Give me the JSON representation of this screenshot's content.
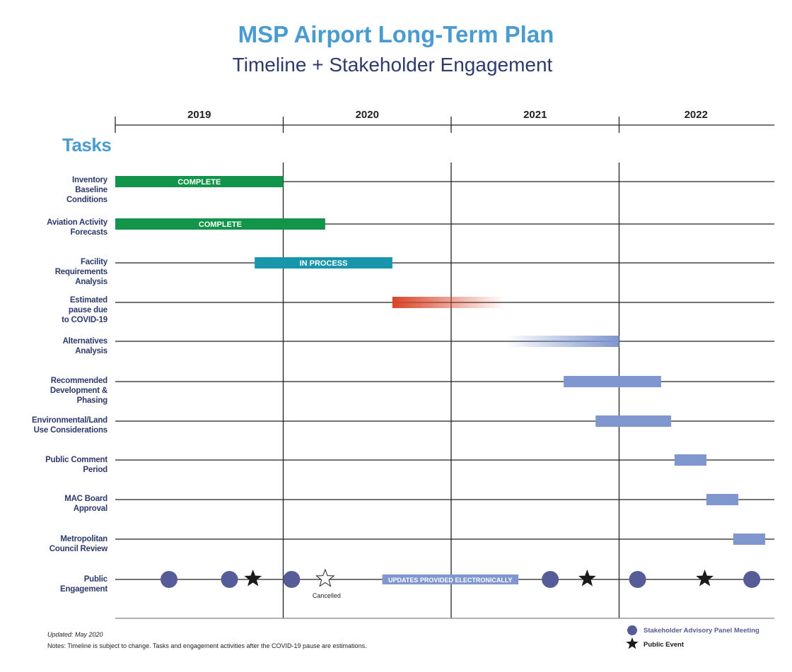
{
  "title": "MSP Airport Long-Term Plan",
  "subtitle": "Timeline + Stakeholder Engagement",
  "tasks_heading": "Tasks",
  "colors": {
    "title": "#4a9cd0",
    "label": "#2d3a6b",
    "complete": "#12944a",
    "in_process": "#1896ab",
    "covid": "#d9452a",
    "planned": "#7f96cf",
    "meeting": "#565c97",
    "event": "#1a1a1a"
  },
  "chart_data": {
    "type": "gantt",
    "x_axis": {
      "unit": "year",
      "range": [
        2019,
        2023
      ],
      "tick_labels": [
        "2019",
        "2020",
        "2021",
        "2022"
      ]
    },
    "tasks": [
      {
        "label": "Inventory\nBaseline\nConditions",
        "start": 2019.0,
        "end": 2020.0,
        "status": "COMPLETE",
        "style": "complete"
      },
      {
        "label": "Aviation Activity\nForecasts",
        "start": 2019.0,
        "end": 2020.25,
        "status": "COMPLETE",
        "style": "complete"
      },
      {
        "label": "Facility\nRequirements\nAnalysis",
        "start": 2019.83,
        "end": 2020.65,
        "status": "IN PROCESS",
        "style": "in_process"
      },
      {
        "label": "Estimated\npause due\nto COVID-19",
        "start": 2020.65,
        "end": 2021.32,
        "status": "",
        "style": "covid"
      },
      {
        "label": "Alternatives\nAnalysis",
        "start": 2021.32,
        "end": 2022.0,
        "status": "",
        "style": "fade_in"
      },
      {
        "label": "Recommended\nDevelopment &\nPhasing",
        "start": 2021.67,
        "end": 2022.25,
        "status": "",
        "style": "planned"
      },
      {
        "label": "Environmental/Land\nUse Considerations",
        "start": 2021.86,
        "end": 2022.31,
        "status": "",
        "style": "planned"
      },
      {
        "label": "Public Comment\nPeriod",
        "start": 2022.33,
        "end": 2022.52,
        "status": "",
        "style": "planned"
      },
      {
        "label": "MAC Board\nApproval",
        "start": 2022.52,
        "end": 2022.71,
        "status": "",
        "style": "planned"
      },
      {
        "label": "Metropolitan\nCouncil Review",
        "start": 2022.68,
        "end": 2022.87,
        "status": "",
        "style": "planned"
      }
    ],
    "engagement": {
      "label": "Public\nEngagement",
      "electronic_updates": {
        "start": 2020.59,
        "end": 2021.4,
        "text": "UPDATES PROVIDED ELECTRONICALLY"
      },
      "meetings": [
        2019.32,
        2019.68,
        2020.05,
        2021.59,
        2022.11,
        2022.79
      ],
      "public_events": [
        2019.82,
        2021.81,
        2022.51
      ],
      "cancelled_events": [
        {
          "x": 2020.25,
          "text": "Cancelled"
        }
      ]
    },
    "legend": [
      {
        "symbol": "circle",
        "text": "Stakeholder Advisory Panel Meeting"
      },
      {
        "symbol": "star",
        "text": "Public Event"
      }
    ]
  },
  "notes": {
    "updated": "Updated: May 2020",
    "text": "Notes: Timeline is subject to change. Tasks and engagement activities after the COVID-19 pause are estimations."
  }
}
